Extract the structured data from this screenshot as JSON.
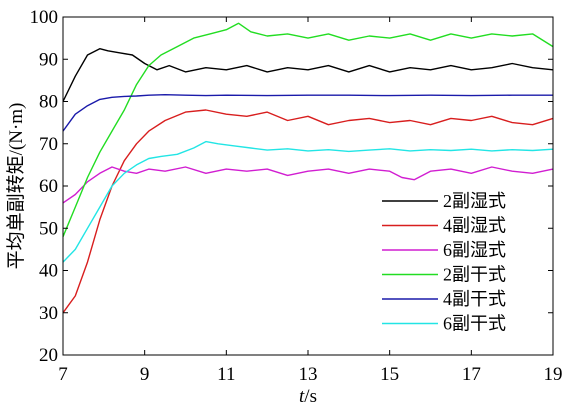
{
  "chart_data": {
    "type": "line",
    "xlabel_italic": "t",
    "xlabel_unit": "/s",
    "ylabel": "平均单副转矩/(N·m)",
    "xlim": [
      7,
      19
    ],
    "ylim": [
      20,
      100
    ],
    "x_ticks": [
      "7",
      "9",
      "11",
      "13",
      "15",
      "17",
      "19"
    ],
    "y_ticks": [
      "20",
      "30",
      "40",
      "50",
      "60",
      "70",
      "80",
      "90",
      "100"
    ],
    "grid": false,
    "legend_position": "bottom-right",
    "series": [
      {
        "name": "2副湿式",
        "color": "#000000",
        "x": [
          7.0,
          7.3,
          7.6,
          7.9,
          8.1,
          8.4,
          8.7,
          9.0,
          9.3,
          9.6,
          10.0,
          10.5,
          11.0,
          11.5,
          12.0,
          12.5,
          13.0,
          13.5,
          14.0,
          14.5,
          15.0,
          15.5,
          16.0,
          16.5,
          17.0,
          17.5,
          18.0,
          18.5,
          19.0
        ],
        "values": [
          80,
          86,
          91,
          92.5,
          92,
          91.5,
          91,
          89,
          87.5,
          88.5,
          87,
          88,
          87.5,
          88.5,
          87,
          88,
          87.5,
          88.5,
          87,
          88.5,
          87,
          88,
          87.5,
          88.5,
          87.5,
          88,
          89,
          88,
          87.5
        ]
      },
      {
        "name": "4副湿式",
        "color": "#d81e1e",
        "x": [
          7.0,
          7.3,
          7.6,
          7.9,
          8.2,
          8.5,
          8.8,
          9.1,
          9.5,
          10.0,
          10.5,
          11.0,
          11.5,
          12.0,
          12.5,
          13.0,
          13.5,
          14.0,
          14.5,
          15.0,
          15.5,
          16.0,
          16.5,
          17.0,
          17.5,
          18.0,
          18.5,
          19.0
        ],
        "values": [
          30,
          34,
          42,
          52,
          60,
          66,
          70,
          73,
          75.5,
          77.5,
          78,
          77,
          76.5,
          77.5,
          75.5,
          76.5,
          74.5,
          75.5,
          76,
          75,
          75.5,
          74.5,
          76,
          75.5,
          76.5,
          75,
          74.5,
          76
        ]
      },
      {
        "name": "6副湿式",
        "color": "#d11ed1",
        "x": [
          7.0,
          7.3,
          7.6,
          7.9,
          8.2,
          8.5,
          8.8,
          9.1,
          9.5,
          10.0,
          10.5,
          11.0,
          11.5,
          12.0,
          12.5,
          13.0,
          13.5,
          14.0,
          14.5,
          15.0,
          15.3,
          15.6,
          16.0,
          16.5,
          17.0,
          17.5,
          18.0,
          18.5,
          19.0
        ],
        "values": [
          56,
          58,
          61,
          63,
          64.5,
          63.5,
          63,
          64,
          63.5,
          64.5,
          63,
          64,
          63.5,
          64,
          62.5,
          63.5,
          64,
          63,
          64,
          63.5,
          62,
          61.5,
          63.5,
          64,
          63,
          64.5,
          63.5,
          63,
          64
        ]
      },
      {
        "name": "2副干式",
        "color": "#22dd22",
        "x": [
          7.0,
          7.3,
          7.6,
          7.9,
          8.2,
          8.5,
          8.8,
          9.1,
          9.4,
          9.8,
          10.2,
          10.6,
          11.0,
          11.3,
          11.6,
          12.0,
          12.5,
          13.0,
          13.5,
          14.0,
          14.5,
          15.0,
          15.5,
          16.0,
          16.5,
          17.0,
          17.5,
          18.0,
          18.5,
          19.0
        ],
        "values": [
          48,
          55,
          62,
          68,
          73,
          78,
          84,
          88.5,
          91,
          93,
          95,
          96,
          97,
          98.5,
          96.5,
          95.5,
          96,
          95,
          96,
          94.5,
          95.5,
          95,
          96,
          94.5,
          96,
          95,
          96,
          95.5,
          96,
          93
        ]
      },
      {
        "name": "4副干式",
        "color": "#1a1aaa",
        "x": [
          7.0,
          7.3,
          7.6,
          7.9,
          8.2,
          8.5,
          8.8,
          9.1,
          9.5,
          10.0,
          10.5,
          11.0,
          12.0,
          13.0,
          14.0,
          15.0,
          16.0,
          17.0,
          18.0,
          19.0
        ],
        "values": [
          73,
          77,
          79,
          80.5,
          81,
          81.2,
          81.3,
          81.5,
          81.6,
          81.5,
          81.4,
          81.5,
          81.4,
          81.5,
          81.5,
          81.4,
          81.5,
          81.4,
          81.5,
          81.5
        ]
      },
      {
        "name": "6副干式",
        "color": "#22e5e5",
        "x": [
          7.0,
          7.3,
          7.6,
          7.9,
          8.2,
          8.5,
          8.8,
          9.1,
          9.4,
          9.8,
          10.2,
          10.5,
          10.8,
          11.2,
          11.6,
          12.0,
          12.5,
          13.0,
          13.5,
          14.0,
          14.5,
          15.0,
          15.5,
          16.0,
          16.5,
          17.0,
          17.5,
          18.0,
          18.5,
          19.0
        ],
        "values": [
          42,
          45,
          50,
          55,
          60,
          63,
          65,
          66.5,
          67,
          67.5,
          69,
          70.5,
          70,
          69.5,
          69,
          68.5,
          68.8,
          68.3,
          68.6,
          68.2,
          68.5,
          68.8,
          68.3,
          68.6,
          68.4,
          68.7,
          68.3,
          68.6,
          68.4,
          68.7
        ]
      }
    ]
  }
}
